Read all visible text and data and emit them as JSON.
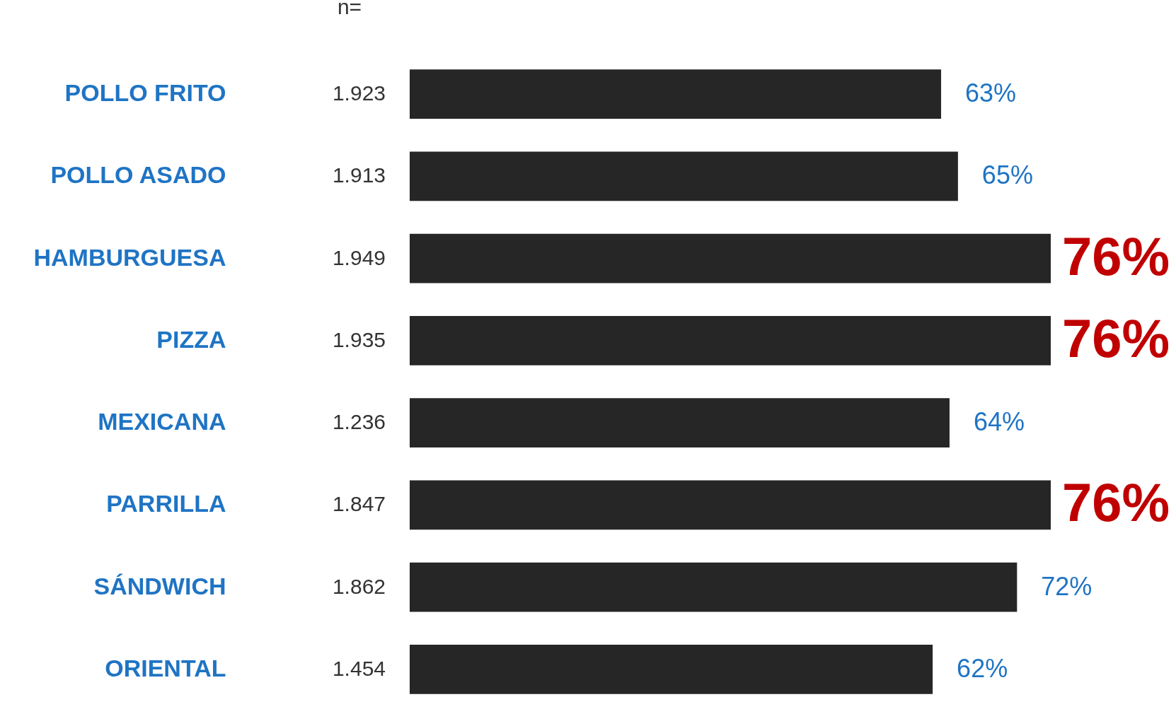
{
  "chart_data": {
    "type": "bar",
    "orientation": "horizontal",
    "categories": [
      "POLLO FRITO",
      "POLLO ASADO",
      "HAMBURGUESA",
      "PIZZA",
      "MEXICANA",
      "PARRILLA",
      "SÁNDWICH",
      "ORIENTAL"
    ],
    "values": [
      63,
      65,
      76,
      76,
      64,
      76,
      72,
      62
    ],
    "color": "#262626",
    "data_labels": true,
    "value_labels": [
      "63%",
      "65%",
      "76%",
      "76%",
      "64%",
      "76%",
      "72%",
      "62%"
    ],
    "annotations": [
      "n=",
      "1.923",
      "1.913",
      "1.949",
      "1.935",
      "1.236",
      "1.847",
      "1.862",
      "1.454"
    ]
  }
}
